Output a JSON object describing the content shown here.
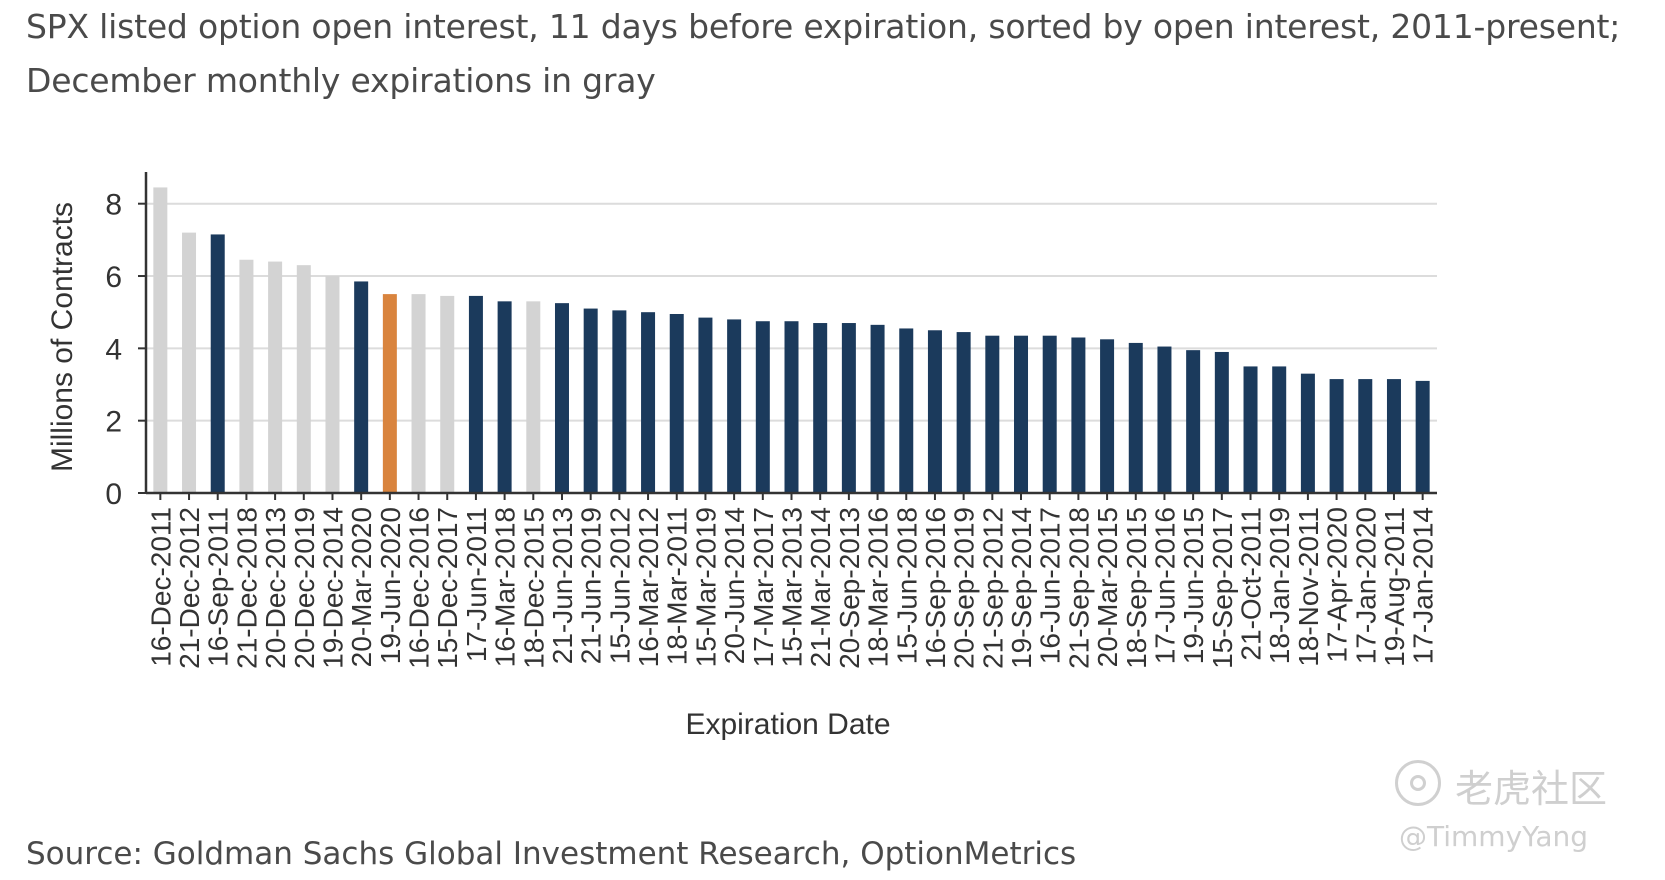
{
  "header": {
    "subtitle_line1": "SPX listed option open interest, 11 days before expiration, sorted by open interest, 2011-present;",
    "subtitle_line2": "December monthly expirations in gray"
  },
  "footer": {
    "source": "Source: Goldman Sachs Global Investment Research, OptionMetrics"
  },
  "watermark": {
    "brand": "老虎社区",
    "user": "@TimmyYang"
  },
  "colors": {
    "regular": "#1b3a5c",
    "december": "#d3d3d3",
    "highlight": "#d9843e",
    "grid": "#dcdcdc",
    "axis": "#333333"
  },
  "chart_data": {
    "type": "bar",
    "xlabel": "Expiration Date",
    "ylabel": "Millions of Contracts",
    "ylim": [
      0,
      8.6
    ],
    "yticks": [
      0,
      2,
      4,
      6,
      8
    ],
    "grid": true,
    "categories": [
      "16-Dec-2011",
      "21-Dec-2012",
      "16-Sep-2011",
      "21-Dec-2018",
      "20-Dec-2013",
      "20-Dec-2019",
      "19-Dec-2014",
      "20-Mar-2020",
      "19-Jun-2020",
      "16-Dec-2016",
      "15-Dec-2017",
      "17-Jun-2011",
      "16-Mar-2018",
      "18-Dec-2015",
      "21-Jun-2013",
      "21-Jun-2019",
      "15-Jun-2012",
      "16-Mar-2012",
      "18-Mar-2011",
      "15-Mar-2019",
      "20-Jun-2014",
      "17-Mar-2017",
      "15-Mar-2013",
      "21-Mar-2014",
      "20-Sep-2013",
      "18-Mar-2016",
      "15-Jun-2018",
      "16-Sep-2016",
      "20-Sep-2019",
      "21-Sep-2012",
      "19-Sep-2014",
      "16-Jun-2017",
      "21-Sep-2018",
      "20-Mar-2015",
      "18-Sep-2015",
      "17-Jun-2016",
      "19-Jun-2015",
      "15-Sep-2017",
      "21-Oct-2011",
      "18-Jan-2019",
      "18-Nov-2011",
      "17-Apr-2020",
      "17-Jan-2020",
      "19-Aug-2011",
      "17-Jan-2014"
    ],
    "values": [
      8.45,
      7.2,
      7.15,
      6.45,
      6.4,
      6.3,
      6.0,
      5.85,
      5.5,
      5.5,
      5.45,
      5.45,
      5.3,
      5.3,
      5.25,
      5.1,
      5.05,
      5.0,
      4.95,
      4.85,
      4.8,
      4.75,
      4.75,
      4.7,
      4.7,
      4.65,
      4.55,
      4.5,
      4.45,
      4.35,
      4.35,
      4.35,
      4.3,
      4.25,
      4.15,
      4.05,
      3.95,
      3.9,
      3.5,
      3.5,
      3.3,
      3.15,
      3.15,
      3.15,
      3.1
    ],
    "bar_groups": [
      "december",
      "december",
      "regular",
      "december",
      "december",
      "december",
      "december",
      "regular",
      "highlight",
      "december",
      "december",
      "regular",
      "regular",
      "december",
      "regular",
      "regular",
      "regular",
      "regular",
      "regular",
      "regular",
      "regular",
      "regular",
      "regular",
      "regular",
      "regular",
      "regular",
      "regular",
      "regular",
      "regular",
      "regular",
      "regular",
      "regular",
      "regular",
      "regular",
      "regular",
      "regular",
      "regular",
      "regular",
      "regular",
      "regular",
      "regular",
      "regular",
      "regular",
      "regular",
      "regular"
    ]
  }
}
